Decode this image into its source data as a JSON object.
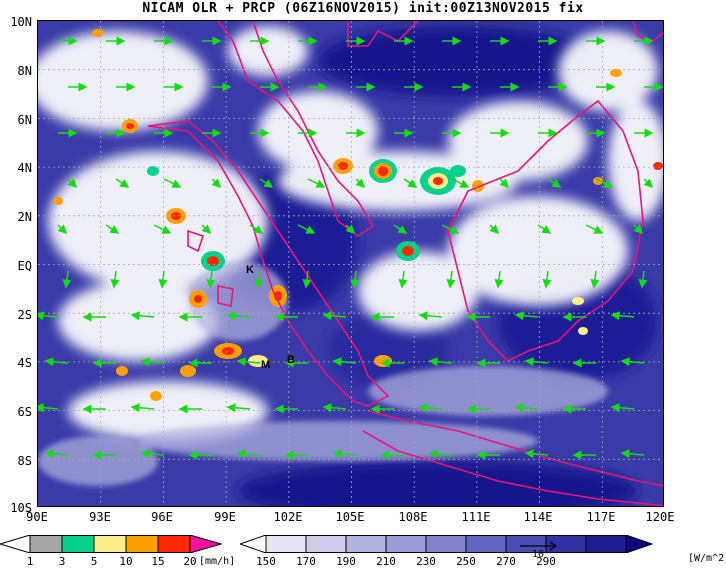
{
  "title": "NICAM OLR + PRCP (06Z16NOV2015) init:00Z13NOV2015 fix",
  "lat_labels": [
    "10N",
    "8N",
    "6N",
    "4N",
    "2N",
    "EQ",
    "2S",
    "4S",
    "6S",
    "8S",
    "10S"
  ],
  "lon_labels": [
    "90E",
    "93E",
    "96E",
    "99E",
    "102E",
    "105E",
    "108E",
    "111E",
    "114E",
    "117E",
    "120E"
  ],
  "station_labels": {
    "k": "K",
    "m": "M",
    "b": "B"
  },
  "vector_ref_label": "10",
  "precip_colorbar": {
    "ticks": [
      "1",
      "3",
      "5",
      "10",
      "15",
      "20"
    ],
    "unit": "[mm/h]",
    "colors": [
      "#ffffff",
      "#a6a6a6",
      "#00d28c",
      "#ffee8c",
      "#ffa000",
      "#ff2800",
      "#ff10a0"
    ]
  },
  "olr_colorbar": {
    "ticks": [
      "150",
      "170",
      "190",
      "210",
      "230",
      "250",
      "270",
      "290"
    ],
    "unit": "[W/m^2]",
    "colors": [
      "#ffffff",
      "#e6e6f5",
      "#cdcdeb",
      "#b4b4e1",
      "#9b9bd7",
      "#8282cd",
      "#6464c3",
      "#4b4bb4",
      "#3232a5",
      "#1e1e96",
      "#0a0a82"
    ]
  },
  "colors": {
    "ocean_deep": "#14148c",
    "cloud": "#ffffff",
    "coastline": "#e6147d",
    "wind_vector": "#14dc14",
    "grid": "#aaaaaa"
  }
}
